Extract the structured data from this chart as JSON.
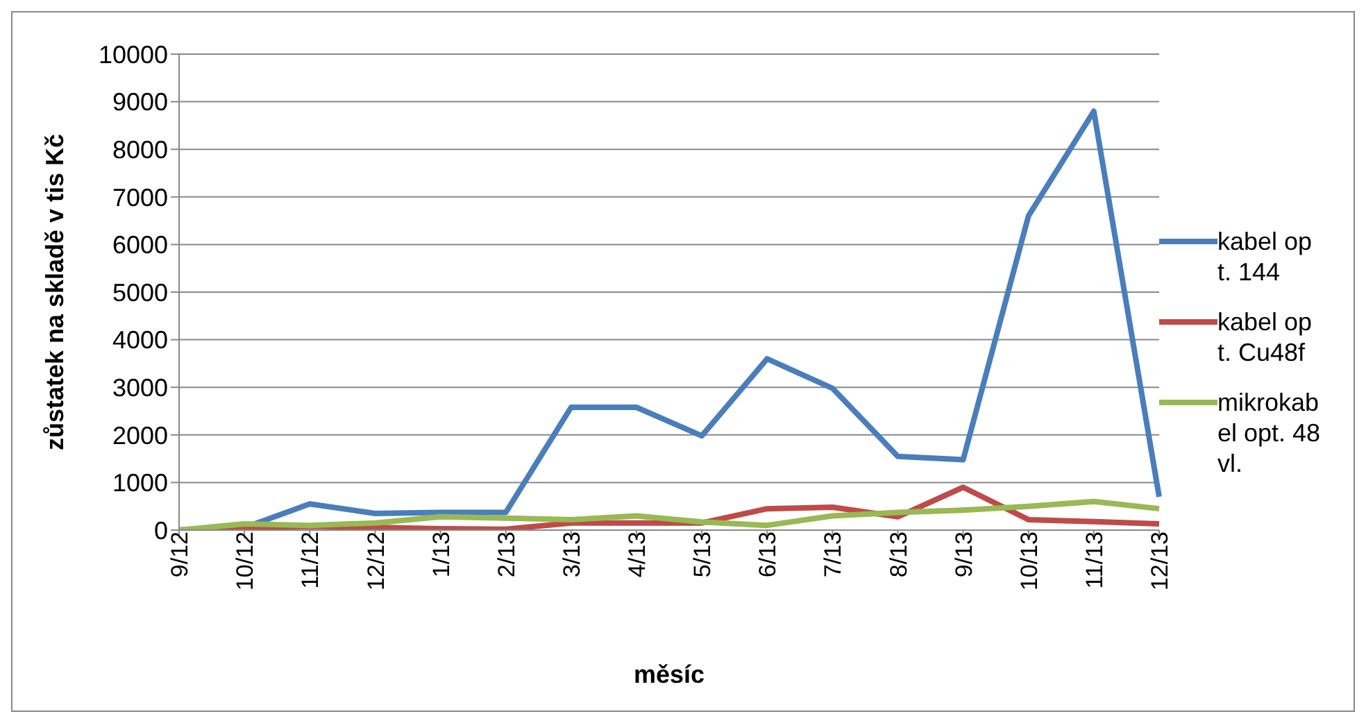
{
  "chart_data": {
    "type": "line",
    "xlabel": "měsíc",
    "ylabel": "zůstatek na skladě v tis Kč",
    "categories": [
      "9/12",
      "10/12",
      "11/12",
      "12/12",
      "1/13",
      "2/13",
      "3/13",
      "4/13",
      "5/13",
      "6/13",
      "7/13",
      "8/13",
      "9/13",
      "10/13",
      "11/13",
      "12/13"
    ],
    "series": [
      {
        "name": "kabel opt. 144",
        "color": "#4a7ebb",
        "values": [
          0,
          50,
          550,
          350,
          370,
          370,
          2580,
          2580,
          1980,
          3600,
          2980,
          1550,
          1480,
          6600,
          8800,
          700
        ]
      },
      {
        "name": "kabel opt. Cu48f",
        "color": "#be4b48",
        "values": [
          0,
          50,
          80,
          60,
          30,
          20,
          150,
          150,
          150,
          450,
          480,
          280,
          900,
          220,
          180,
          130
        ]
      },
      {
        "name": "mikrokabel opt. 48vl.",
        "color": "#98b954",
        "values": [
          0,
          130,
          100,
          150,
          280,
          250,
          220,
          300,
          170,
          100,
          300,
          370,
          420,
          500,
          600,
          450
        ]
      }
    ],
    "ylim": [
      0,
      10000
    ],
    "yticks": [
      0,
      1000,
      2000,
      3000,
      4000,
      5000,
      6000,
      7000,
      8000,
      9000,
      10000
    ],
    "grid": "y",
    "legend": "right",
    "marker": "none",
    "line_style": "solid"
  }
}
